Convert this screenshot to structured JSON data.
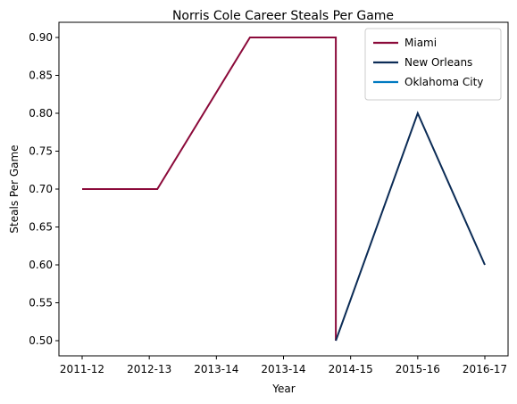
{
  "chart_data": {
    "type": "line",
    "title": "Norris Cole Career Steals Per Game",
    "xlabel": "Year",
    "ylabel": "Steals Per Game",
    "x_tick_labels": [
      "2011-12",
      "2012-13",
      "2013-14",
      "2013-14",
      "2014-15",
      "2015-16",
      "2016-17"
    ],
    "y_ticks": [
      0.5,
      0.55,
      0.6,
      0.65,
      0.7,
      0.75,
      0.8,
      0.85,
      0.9
    ],
    "ylim": [
      0.48,
      0.92
    ],
    "grid": false,
    "legend_position": "top-right",
    "series": [
      {
        "name": "Miami",
        "color": "#8b0a3a",
        "points": [
          {
            "x": "2011-12",
            "y": 0.7
          },
          {
            "x": "2012-13",
            "y": 0.7
          },
          {
            "x": "2013-14",
            "y": 0.9
          },
          {
            "x": "2013-14",
            "y": 0.9
          },
          {
            "x": "2013-14",
            "y": 0.5
          }
        ]
      },
      {
        "name": "New Orleans",
        "color": "#0c2c56",
        "points": [
          {
            "x": "2013-14",
            "y": 0.5
          },
          {
            "x": "2015-16",
            "y": 0.8
          },
          {
            "x": "2016-17",
            "y": 0.6
          }
        ]
      },
      {
        "name": "Oklahoma City",
        "color": "#007ac1",
        "points": []
      }
    ]
  }
}
